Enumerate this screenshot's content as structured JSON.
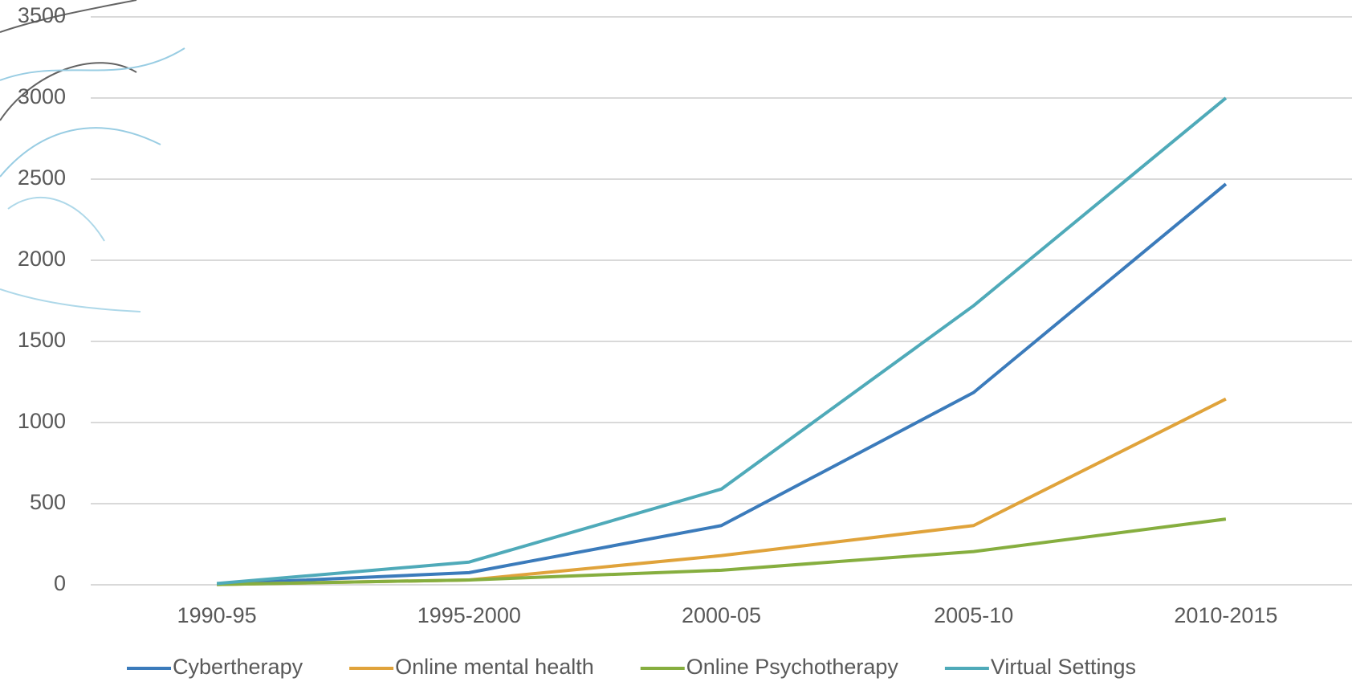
{
  "chart_data": {
    "type": "line",
    "categories": [
      "1990-95",
      "1995-2000",
      "2000-05",
      "2005-10",
      "2010-2015"
    ],
    "series": [
      {
        "name": "Cybertherapy",
        "color": "#3b7bbb",
        "values": [
          5,
          75,
          365,
          1185,
          2470
        ]
      },
      {
        "name": "Online mental health",
        "color": "#e0a33b",
        "values": [
          2,
          30,
          180,
          365,
          1145
        ]
      },
      {
        "name": "Online Psychotherapy",
        "color": "#86ae3f",
        "values": [
          2,
          30,
          90,
          205,
          405
        ]
      },
      {
        "name": "Virtual Settings",
        "color": "#4faab9",
        "values": [
          8,
          140,
          590,
          1720,
          3000
        ]
      }
    ],
    "ylim": [
      0,
      3500
    ],
    "yticks": [
      0,
      500,
      1000,
      1500,
      2000,
      2500,
      3000,
      3500
    ],
    "grid": true,
    "legend": "bottom"
  }
}
